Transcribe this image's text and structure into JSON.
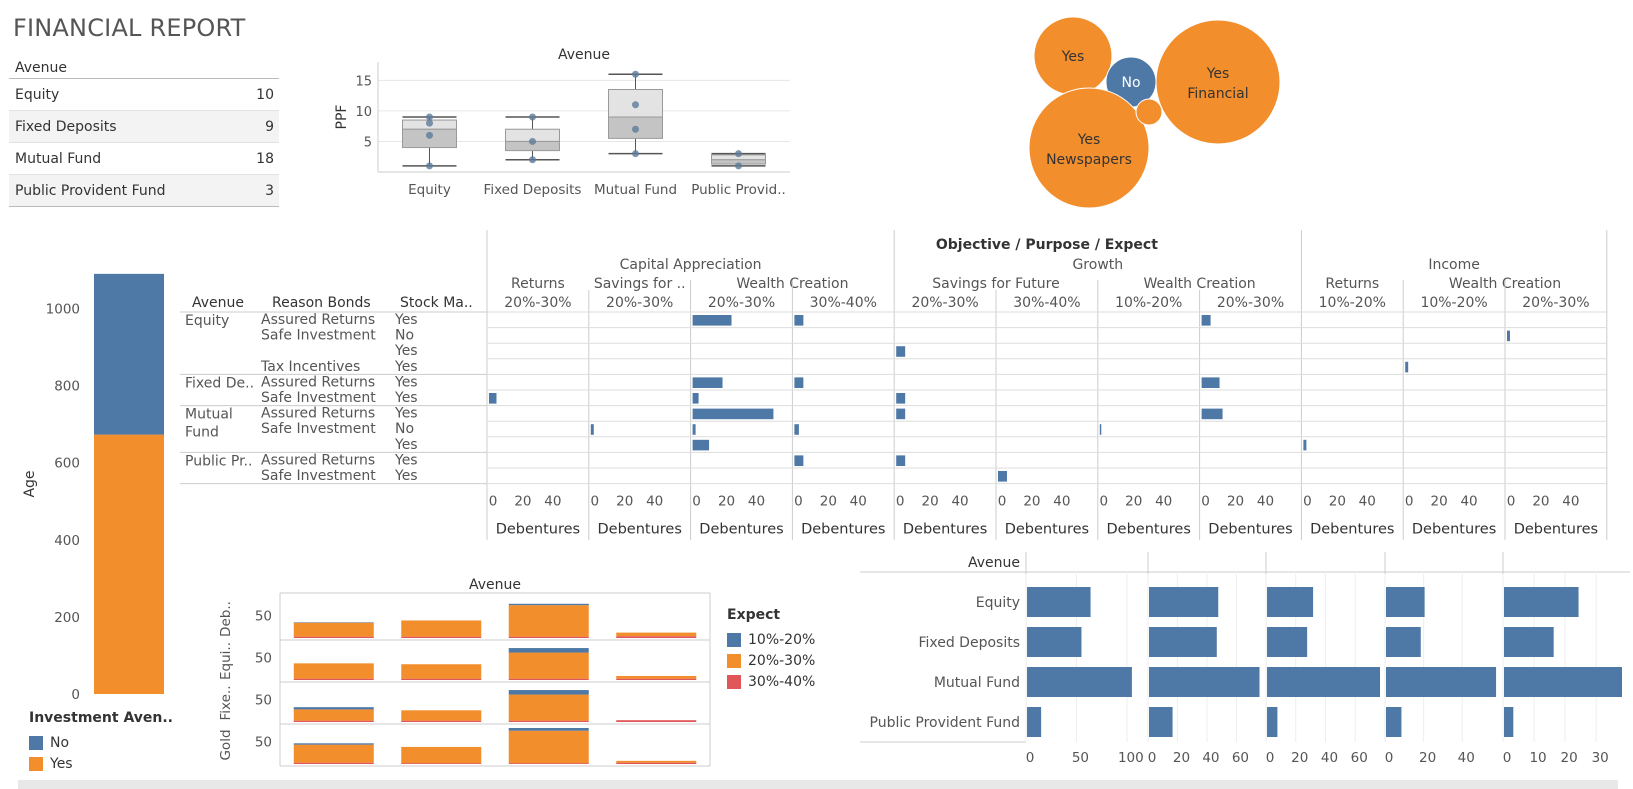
{
  "title": "FINANCIAL REPORT",
  "summary": {
    "header": "Avenue",
    "rows": [
      {
        "label": "Equity",
        "value": "10"
      },
      {
        "label": "Fixed Deposits",
        "value": "9"
      },
      {
        "label": "Mutual Fund",
        "value": "18"
      },
      {
        "label": "Public Provident Fund",
        "value": "3"
      }
    ]
  },
  "colors": {
    "blue": "#4e79a7",
    "orange": "#f28e2b",
    "red": "#e15759",
    "grid": "#e6e6e6"
  },
  "chart_data": [
    {
      "id": "boxplot",
      "type": "box",
      "title": "Avenue",
      "ylabel": "PPF",
      "ylim": [
        0,
        18
      ],
      "yticks": [
        5,
        10,
        15
      ],
      "categories": [
        "Equity",
        "Fixed Deposits",
        "Mutual Fund",
        "Public Provid.."
      ],
      "boxes": [
        {
          "min": 1,
          "q1": 4,
          "median": 7,
          "q3": 8.5,
          "max": 9,
          "points": [
            1,
            6,
            8,
            9
          ]
        },
        {
          "min": 2,
          "q1": 3.5,
          "median": 5,
          "q3": 7,
          "max": 9,
          "points": [
            2,
            5,
            9
          ]
        },
        {
          "min": 3,
          "q1": 5.5,
          "median": 9,
          "q3": 13.5,
          "max": 16,
          "points": [
            3,
            7,
            11,
            16
          ]
        },
        {
          "min": 1,
          "q1": 1.3,
          "median": 2,
          "q3": 2.8,
          "max": 3,
          "points": [
            1,
            3
          ]
        }
      ]
    },
    {
      "id": "bubbles",
      "type": "bubble",
      "bubbles": [
        {
          "label": "Yes",
          "sublabel": "",
          "color": "orange",
          "size": 39
        },
        {
          "label": "No",
          "sublabel": "",
          "color": "blue",
          "size": 25
        },
        {
          "label": "Yes",
          "sublabel": "Financial",
          "color": "orange",
          "size": 62
        },
        {
          "label": "Yes",
          "sublabel": "Newspapers",
          "color": "orange",
          "size": 60
        },
        {
          "label": "",
          "sublabel": "",
          "color": "orange",
          "size": 13
        }
      ]
    },
    {
      "id": "age-stack",
      "type": "bar",
      "ylabel": "Age",
      "ylim": [
        0,
        1100
      ],
      "yticks": [
        "0",
        "200",
        "400",
        "600",
        "800",
        "1000"
      ],
      "series": [
        {
          "name": "Yes",
          "color": "orange",
          "value": 673
        },
        {
          "name": "No",
          "color": "blue",
          "value": 417
        }
      ],
      "legend_title": "Investment Aven..",
      "legend": [
        {
          "name": "No",
          "color": "blue"
        },
        {
          "name": "Yes",
          "color": "orange"
        }
      ]
    },
    {
      "id": "matrix",
      "type": "bar",
      "title": "Objective / Purpose / Expect",
      "row_headers": [
        "Avenue",
        "Reason Bonds",
        "Stock Ma.."
      ],
      "level1": [
        {
          "label": "Capital Appreciation",
          "span": 4
        },
        {
          "label": "Growth",
          "span": 4
        },
        {
          "label": "Income",
          "span": 3
        }
      ],
      "level2": [
        {
          "label": "Returns",
          "span": 1
        },
        {
          "label": "Savings for ..",
          "span": 1
        },
        {
          "label": "Wealth Creation",
          "span": 2
        },
        {
          "label": "Savings for Future",
          "span": 2
        },
        {
          "label": "Wealth Creation",
          "span": 2
        },
        {
          "label": "Returns",
          "span": 1
        },
        {
          "label": "Wealth Creation",
          "span": 2
        }
      ],
      "columns": [
        "20%-30%",
        "20%-30%",
        "20%-30%",
        "30%-40%",
        "20%-30%",
        "30%-40%",
        "10%-20%",
        "20%-30%",
        "10%-20%",
        "10%-20%",
        "20%-30%"
      ],
      "xticks": [
        "0",
        "20",
        "40"
      ],
      "xlim": [
        0,
        60
      ],
      "xlabel": "Debentures",
      "groups": [
        {
          "avenue": "Equity",
          "span": 4
        },
        {
          "avenue": "Fixed De..",
          "span": 2
        },
        {
          "avenue": "Mutual Fund",
          "span": 3
        },
        {
          "avenue": "Public Pr..",
          "span": 2
        }
      ],
      "rows": [
        {
          "reason": "Assured Returns",
          "stock": "Yes",
          "values": [
            0,
            0,
            26,
            6,
            0,
            0,
            0,
            6,
            0,
            0,
            0
          ]
        },
        {
          "reason": "Safe Investment",
          "stock": "No",
          "values": [
            0,
            0,
            0,
            0,
            0,
            0,
            0,
            0,
            0,
            0,
            2
          ]
        },
        {
          "reason": "",
          "stock": "Yes",
          "values": [
            0,
            0,
            0,
            0,
            6,
            0,
            0,
            0,
            0,
            0,
            0
          ]
        },
        {
          "reason": "Tax Incentives",
          "stock": "Yes",
          "values": [
            0,
            0,
            0,
            0,
            0,
            0,
            0,
            0,
            0,
            2,
            0
          ]
        },
        {
          "reason": "Assured Returns",
          "stock": "Yes",
          "values": [
            0,
            0,
            20,
            6,
            0,
            0,
            0,
            12,
            0,
            0,
            0
          ]
        },
        {
          "reason": "Safe Investment",
          "stock": "Yes",
          "values": [
            5,
            0,
            4,
            0,
            6,
            0,
            0,
            0,
            0,
            0,
            0
          ]
        },
        {
          "reason": "Assured Returns",
          "stock": "Yes",
          "values": [
            0,
            0,
            54,
            0,
            6,
            0,
            0,
            14,
            0,
            0,
            0
          ]
        },
        {
          "reason": "Safe Investment",
          "stock": "No",
          "values": [
            0,
            2,
            2,
            3,
            0,
            0,
            1,
            0,
            0,
            0,
            0
          ]
        },
        {
          "reason": "",
          "stock": "Yes",
          "values": [
            0,
            0,
            11,
            0,
            0,
            0,
            0,
            0,
            2,
            0,
            0
          ]
        },
        {
          "reason": "Assured Returns",
          "stock": "Yes",
          "values": [
            0,
            0,
            0,
            6,
            6,
            0,
            0,
            0,
            0,
            0,
            0
          ]
        },
        {
          "reason": "Safe Investment",
          "stock": "Yes",
          "values": [
            0,
            0,
            0,
            0,
            0,
            6,
            0,
            0,
            0,
            0,
            0
          ]
        }
      ]
    },
    {
      "id": "stacked-small",
      "type": "bar",
      "title": "Avenue",
      "rows": [
        "Deb..",
        "Equi..",
        "Fixe..",
        "Gold"
      ],
      "ytick": "50",
      "ylim": [
        0,
        80
      ],
      "categories": [
        "Equity",
        "Fixed Deposits",
        "Mutual Fund",
        "Public Provid.."
      ],
      "data": [
        [
          [
            1,
            31,
            3
          ],
          [
            0,
            36,
            3
          ],
          [
            3,
            70,
            3
          ],
          [
            0,
            8,
            4
          ]
        ],
        [
          [
            0,
            34,
            3
          ],
          [
            0,
            32,
            3
          ],
          [
            10,
            58,
            3
          ],
          [
            0,
            6,
            3
          ]
        ],
        [
          [
            5,
            25,
            3
          ],
          [
            0,
            23,
            3
          ],
          [
            10,
            58,
            3
          ],
          [
            0,
            0,
            4
          ]
        ],
        [
          [
            3,
            40,
            3
          ],
          [
            0,
            36,
            2
          ],
          [
            6,
            72,
            2
          ],
          [
            0,
            4,
            3
          ]
        ]
      ],
      "legend_title": "Expect",
      "legend": [
        {
          "name": "10%-20%",
          "color": "blue"
        },
        {
          "name": "20%-30%",
          "color": "orange"
        },
        {
          "name": "30%-40%",
          "color": "red"
        }
      ]
    },
    {
      "id": "hbars",
      "type": "bar",
      "header": "Avenue",
      "categories": [
        "Equity",
        "Fixed Deposits",
        "Mutual Fund",
        "Public Provident Fund"
      ],
      "panels": [
        {
          "xlim": [
            0,
            115
          ],
          "xticks": [
            "0",
            "50",
            "100"
          ],
          "values": [
            63,
            54,
            104,
            14
          ]
        },
        {
          "xlim": [
            0,
            76
          ],
          "xticks": [
            "0",
            "20",
            "40",
            "60"
          ],
          "values": [
            47,
            46,
            75,
            16
          ]
        },
        {
          "xlim": [
            0,
            76
          ],
          "xticks": [
            "0",
            "20",
            "40",
            "60"
          ],
          "values": [
            31,
            27,
            76,
            7
          ]
        },
        {
          "xlim": [
            0,
            58
          ],
          "xticks": [
            "0",
            "20",
            "40"
          ],
          "values": [
            20,
            18,
            57,
            8
          ]
        },
        {
          "xlim": [
            0,
            38
          ],
          "xticks": [
            "0",
            "10",
            "20",
            "30"
          ],
          "values": [
            24,
            16,
            38,
            3
          ]
        }
      ]
    }
  ]
}
